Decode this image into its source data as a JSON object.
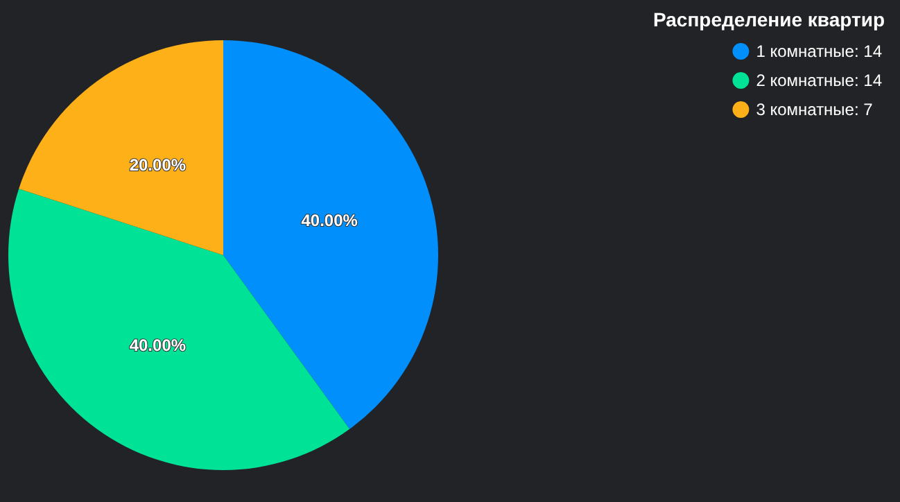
{
  "chart_data": {
    "type": "pie",
    "title": "Распределение квартир",
    "categories": [
      "1 комнатные: 14",
      "2 комнатные: 14",
      "3 комнатные: 7"
    ],
    "values": [
      40,
      40,
      20
    ],
    "colors": [
      "#008ffb",
      "#00e396",
      "#feb019"
    ],
    "value_labels": [
      "40.00%",
      "40.00%",
      "20.00%"
    ],
    "legend": "top right"
  }
}
